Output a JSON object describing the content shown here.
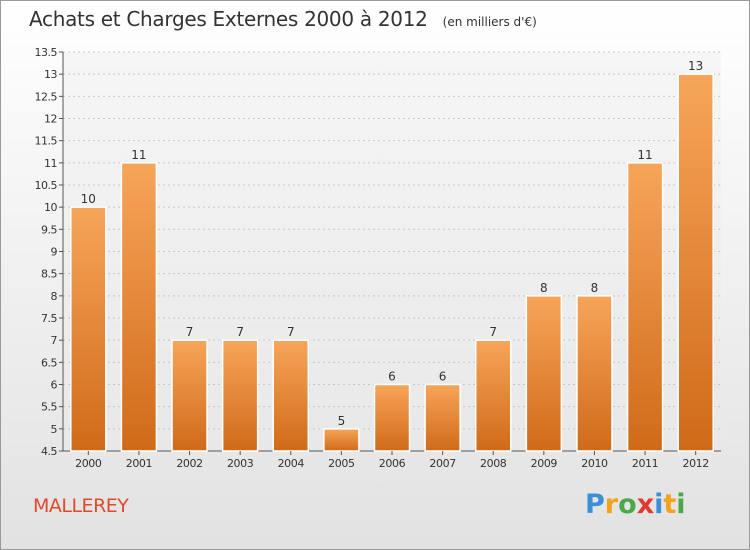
{
  "header": {
    "title": "Achats et Charges Externes 2000 à 2012",
    "subtitle": "(en milliers d'€)"
  },
  "location": "MALLEREY",
  "logo": {
    "text": "Proxiti",
    "letters": [
      {
        "char": "P",
        "color": "#3a8fd6"
      },
      {
        "char": "r",
        "color": "#f2a31b"
      },
      {
        "char": "o",
        "color": "#4aa84a"
      },
      {
        "char": "x",
        "color": "#e03a2f"
      },
      {
        "char": "i",
        "color": "#3a8fd6"
      },
      {
        "char": "t",
        "color": "#f2a31b"
      },
      {
        "char": "i",
        "color": "#4aa84a"
      }
    ]
  },
  "colors": {
    "bar_light": "#f7a55a",
    "bar_dark": "#d06a18",
    "bar_stroke": "#ffffff",
    "label": "#333333",
    "grid": "#c8c8c8"
  },
  "chart_data": {
    "type": "bar",
    "categories": [
      "2000",
      "2001",
      "2002",
      "2003",
      "2004",
      "2005",
      "2006",
      "2007",
      "2008",
      "2009",
      "2010",
      "2011",
      "2012"
    ],
    "values": [
      10,
      11,
      7,
      7,
      7,
      5,
      6,
      6,
      7,
      8,
      8,
      11,
      13
    ],
    "ylim": [
      4.5,
      13.5
    ],
    "yticks": [
      "4.5",
      "5",
      "5.5",
      "6",
      "6.5",
      "7",
      "7.5",
      "8",
      "8.5",
      "9",
      "9.5",
      "10",
      "10.5",
      "11",
      "11.5",
      "12",
      "12.5",
      "13",
      "13.5"
    ],
    "data_labels": [
      "10",
      "11",
      "7",
      "7",
      "7",
      "5",
      "6",
      "6",
      "7",
      "8",
      "8",
      "11",
      "13"
    ],
    "grid": true,
    "legend": "none"
  }
}
